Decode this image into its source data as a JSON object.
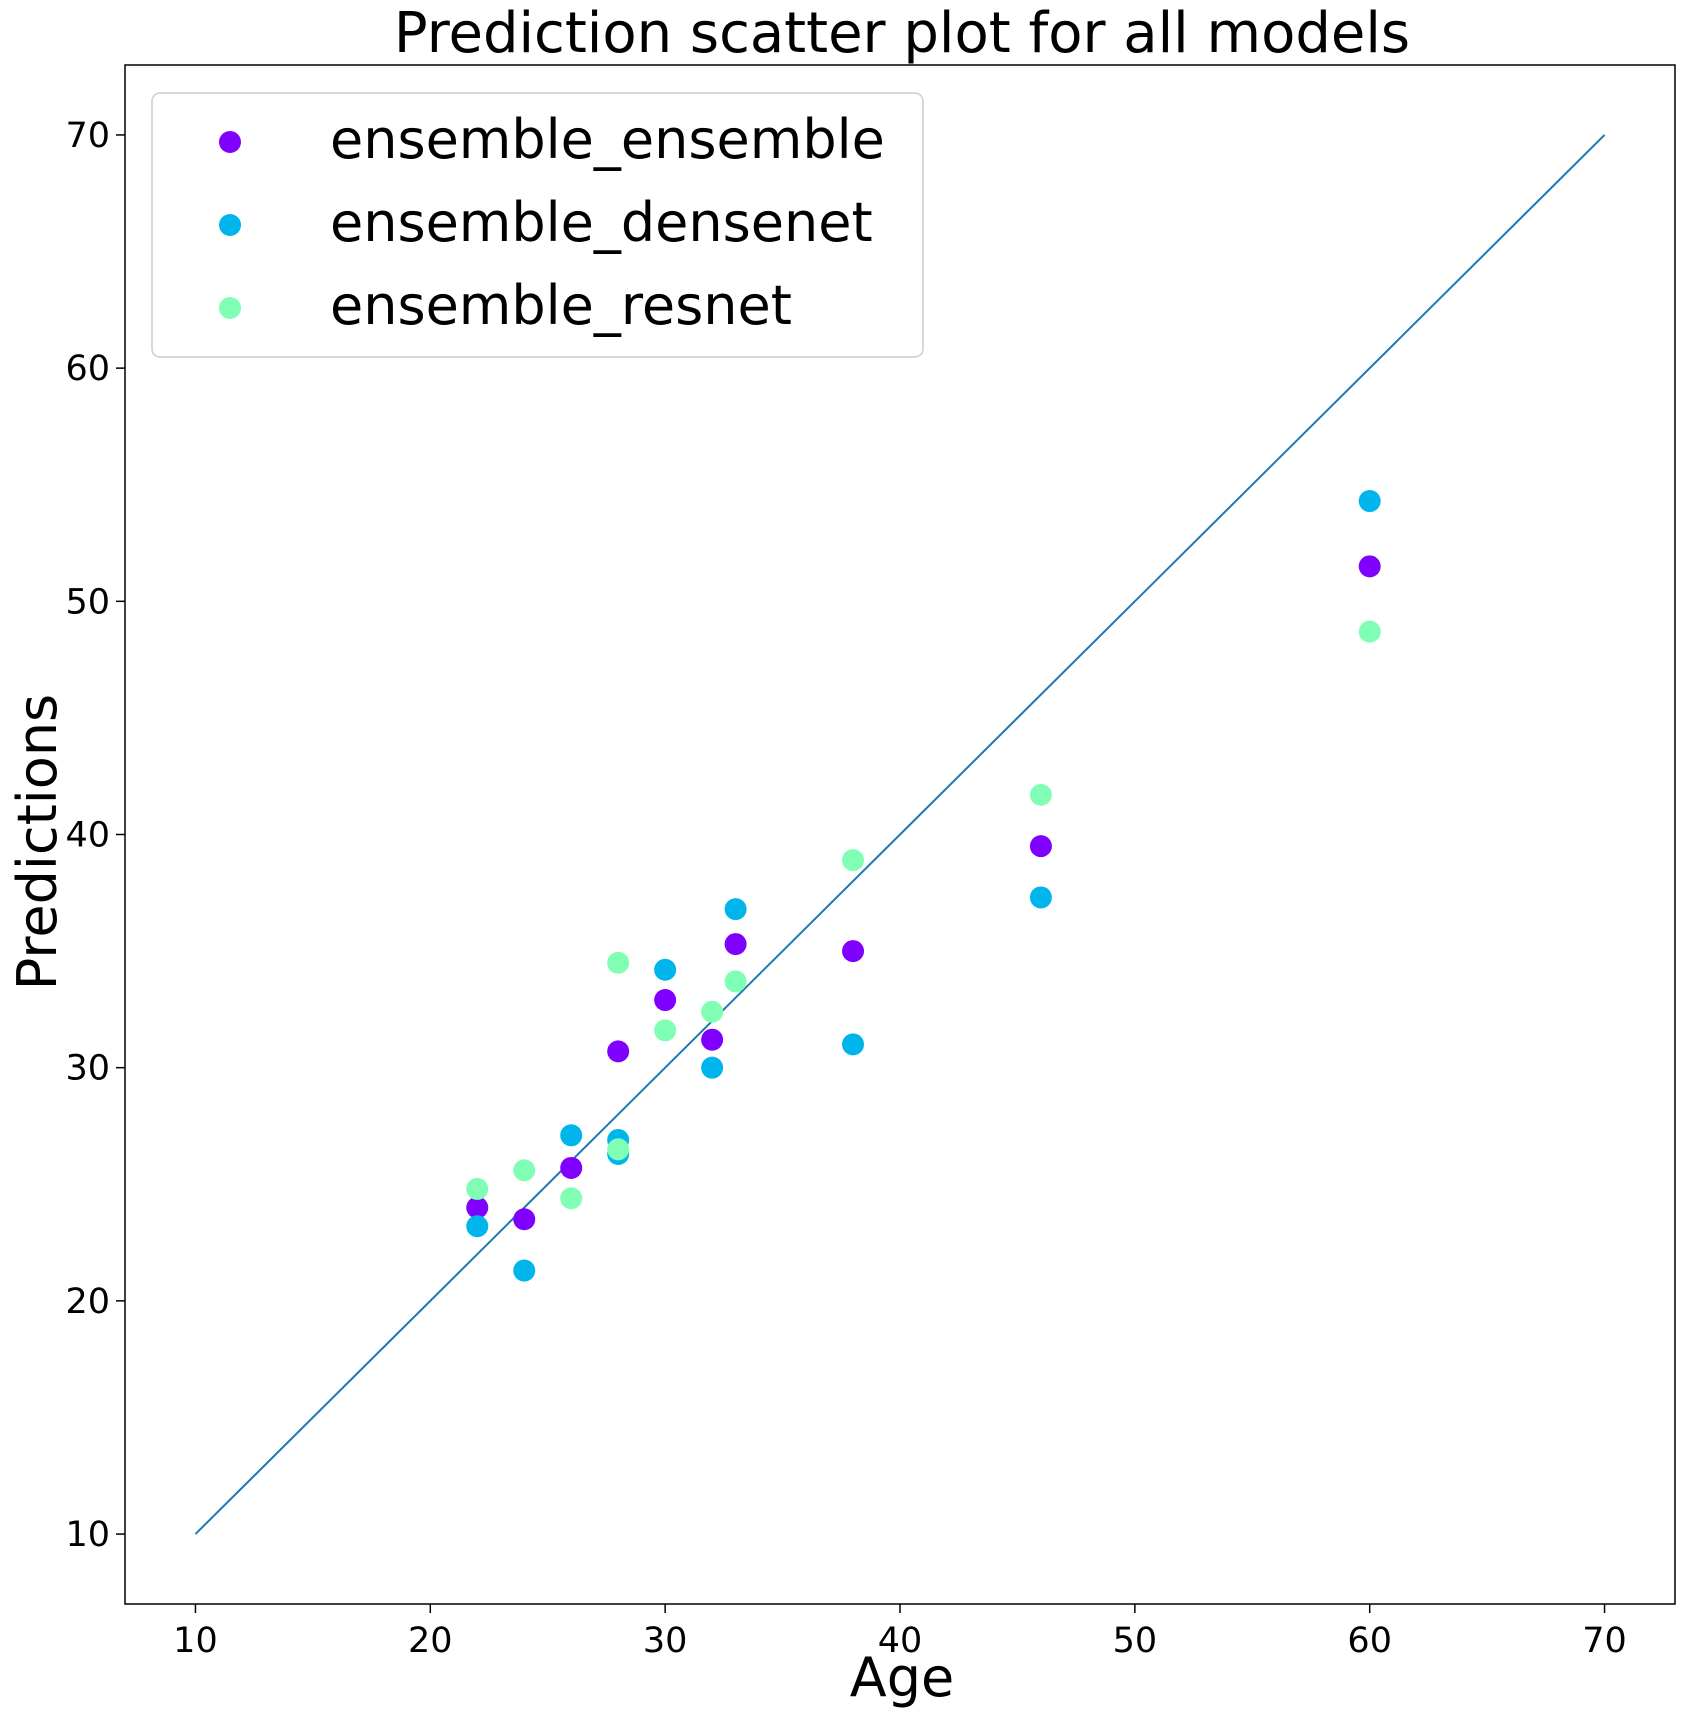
{
  "chart_data": {
    "type": "scatter",
    "title": "Prediction scatter plot for all models",
    "xlabel": "Age",
    "ylabel": "Predictions",
    "xlim": [
      7,
      73
    ],
    "ylim": [
      7,
      73
    ],
    "xticks": [
      "10",
      "20",
      "30",
      "40",
      "50",
      "60",
      "70"
    ],
    "yticks": [
      "10",
      "20",
      "30",
      "40",
      "50",
      "60",
      "70"
    ],
    "grid": false,
    "legend_position": "upper-left",
    "reference_line": {
      "x": [
        10,
        70
      ],
      "y": [
        10,
        70
      ],
      "color": "#1f77b4"
    },
    "series": [
      {
        "name": "ensemble_ensemble",
        "color": "#8000ff",
        "points": [
          {
            "x": 22,
            "y": 24.0
          },
          {
            "x": 24,
            "y": 23.5
          },
          {
            "x": 26,
            "y": 25.7
          },
          {
            "x": 28,
            "y": 30.7
          },
          {
            "x": 30,
            "y": 32.9
          },
          {
            "x": 32,
            "y": 31.2
          },
          {
            "x": 33,
            "y": 35.3
          },
          {
            "x": 38,
            "y": 35.0
          },
          {
            "x": 46,
            "y": 39.5
          },
          {
            "x": 60,
            "y": 51.5
          }
        ]
      },
      {
        "name": "ensemble_densenet",
        "color": "#00b5eb",
        "points": [
          {
            "x": 22,
            "y": 23.2
          },
          {
            "x": 24,
            "y": 21.3
          },
          {
            "x": 26,
            "y": 27.1
          },
          {
            "x": 28,
            "y": 26.9
          },
          {
            "x": 28,
            "y": 26.3
          },
          {
            "x": 30,
            "y": 34.2
          },
          {
            "x": 32,
            "y": 30.0
          },
          {
            "x": 33,
            "y": 36.8
          },
          {
            "x": 38,
            "y": 31.0
          },
          {
            "x": 46,
            "y": 37.3
          },
          {
            "x": 60,
            "y": 54.3
          }
        ]
      },
      {
        "name": "ensemble_resnet",
        "color": "#80ffb4",
        "points": [
          {
            "x": 22,
            "y": 24.8
          },
          {
            "x": 24,
            "y": 25.6
          },
          {
            "x": 26,
            "y": 24.4
          },
          {
            "x": 28,
            "y": 34.5
          },
          {
            "x": 28,
            "y": 26.5
          },
          {
            "x": 30,
            "y": 31.6
          },
          {
            "x": 32,
            "y": 32.4
          },
          {
            "x": 33,
            "y": 33.7
          },
          {
            "x": 38,
            "y": 38.9
          },
          {
            "x": 46,
            "y": 41.7
          },
          {
            "x": 60,
            "y": 48.7
          }
        ]
      }
    ]
  }
}
